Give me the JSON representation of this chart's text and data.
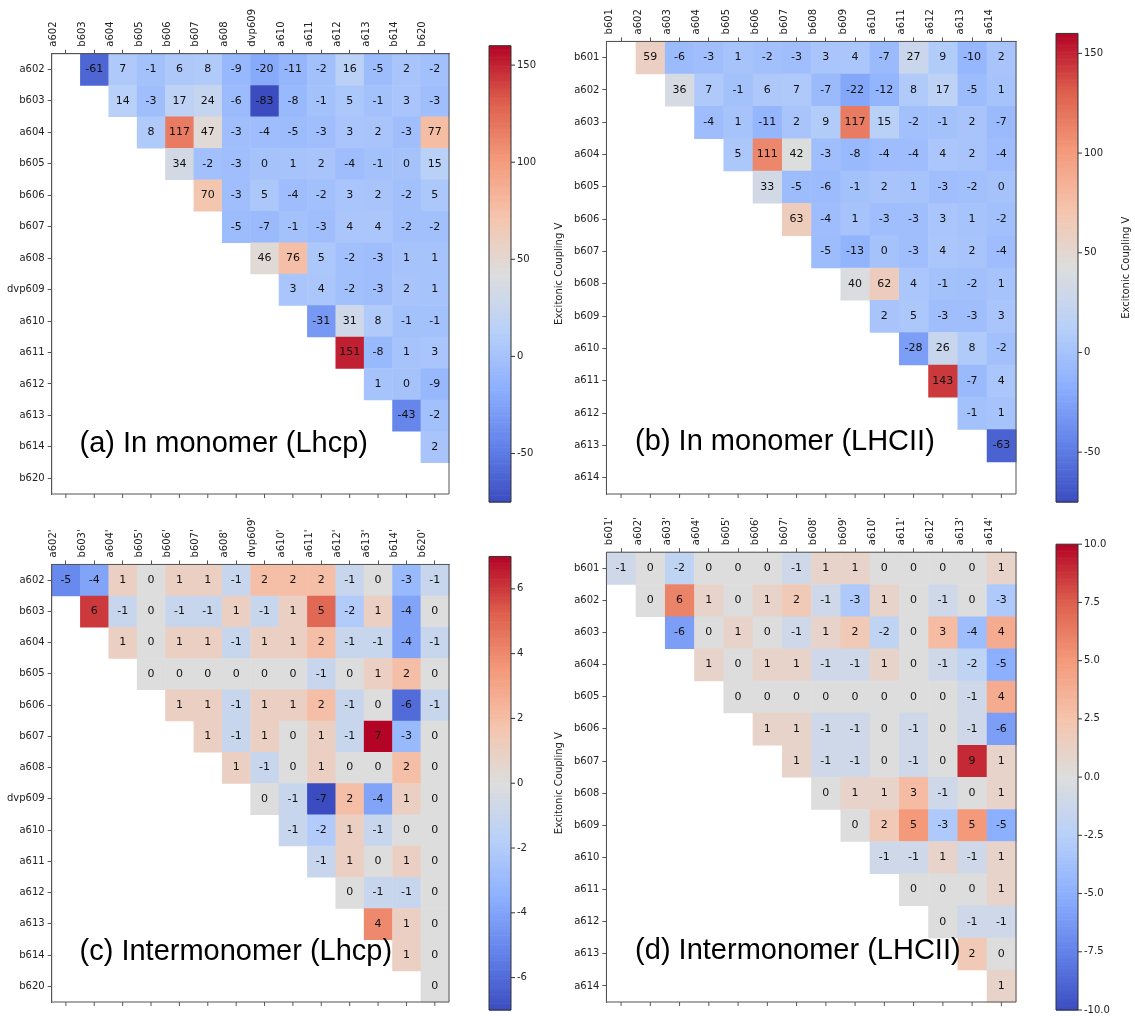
{
  "chart_data": [
    {
      "type": "heatmap",
      "title": "(a) In monomer (Lhcp)",
      "clabel": "Excitonic Coupling V",
      "data_labels": true,
      "categories": [
        "a602",
        "b603",
        "a604",
        "b605",
        "b606",
        "b607",
        "a608",
        "dvp609",
        "a610",
        "a611",
        "a612",
        "a613",
        "b614",
        "b620"
      ],
      "y_categories": [
        "a602",
        "b603",
        "a604",
        "b605",
        "b606",
        "b607",
        "a608",
        "dvp609",
        "a610",
        "a611",
        "a612",
        "a613",
        "b614",
        "b620"
      ],
      "clim": [
        -75,
        160
      ],
      "cticks": [
        -50,
        0,
        50,
        100,
        150
      ],
      "cells": [
        [
          null,
          -61,
          7,
          -1,
          6,
          8,
          -9,
          -20,
          -11,
          -2,
          16,
          -5,
          2,
          -2
        ],
        [
          null,
          null,
          14,
          -3,
          17,
          24,
          -6,
          -83,
          -8,
          -1,
          5,
          -1,
          3,
          -3
        ],
        [
          null,
          null,
          null,
          8,
          117,
          47,
          -3,
          -4,
          -5,
          -3,
          3,
          2,
          -3,
          77
        ],
        [
          null,
          null,
          null,
          null,
          34,
          -2,
          -3,
          0,
          1,
          2,
          -4,
          -1,
          0,
          15
        ],
        [
          null,
          null,
          null,
          null,
          null,
          70,
          -3,
          5,
          -4,
          -2,
          3,
          2,
          -2,
          5
        ],
        [
          null,
          null,
          null,
          null,
          null,
          null,
          -5,
          -7,
          -1,
          -3,
          4,
          4,
          -2,
          -2
        ],
        [
          null,
          null,
          null,
          null,
          null,
          null,
          null,
          46,
          76,
          5,
          -2,
          -3,
          1,
          1
        ],
        [
          null,
          null,
          null,
          null,
          null,
          null,
          null,
          null,
          3,
          4,
          -2,
          -3,
          2,
          1
        ],
        [
          null,
          null,
          null,
          null,
          null,
          null,
          null,
          null,
          null,
          -31,
          31,
          8,
          -1,
          -1
        ],
        [
          null,
          null,
          null,
          null,
          null,
          null,
          null,
          null,
          null,
          null,
          151,
          -8,
          1,
          3
        ],
        [
          null,
          null,
          null,
          null,
          null,
          null,
          null,
          null,
          null,
          null,
          null,
          1,
          0,
          -9
        ],
        [
          null,
          null,
          null,
          null,
          null,
          null,
          null,
          null,
          null,
          null,
          null,
          null,
          -43,
          -2
        ],
        [
          null,
          null,
          null,
          null,
          null,
          null,
          null,
          null,
          null,
          null,
          null,
          null,
          null,
          2
        ],
        [
          null,
          null,
          null,
          null,
          null,
          null,
          null,
          null,
          null,
          null,
          null,
          null,
          null,
          null
        ]
      ]
    },
    {
      "type": "heatmap",
      "title": "(b) In monomer (LHCII)",
      "clabel": "Excitonic Coupling V",
      "data_labels": true,
      "categories": [
        "b601",
        "a602",
        "a603",
        "a604",
        "b605",
        "b606",
        "b607",
        "b608",
        "b609",
        "a610",
        "a611",
        "a612",
        "a613",
        "a614"
      ],
      "y_categories": [
        "b601",
        "a602",
        "a603",
        "a604",
        "b605",
        "b606",
        "b607",
        "b608",
        "b609",
        "a610",
        "a611",
        "a612",
        "a613",
        "a614"
      ],
      "clim": [
        -75,
        160
      ],
      "cticks": [
        -50,
        0,
        50,
        100,
        150
      ],
      "cells": [
        [
          null,
          59,
          -6,
          -3,
          1,
          -2,
          -3,
          3,
          4,
          -7,
          27,
          9,
          -10,
          2
        ],
        [
          null,
          null,
          36,
          7,
          -1,
          6,
          7,
          -7,
          -22,
          -12,
          8,
          17,
          -5,
          1
        ],
        [
          null,
          null,
          null,
          -4,
          1,
          -11,
          2,
          9,
          117,
          15,
          -2,
          -1,
          2,
          -7
        ],
        [
          null,
          null,
          null,
          null,
          5,
          111,
          42,
          -3,
          -8,
          -4,
          -4,
          4,
          2,
          -4
        ],
        [
          null,
          null,
          null,
          null,
          null,
          33,
          -5,
          -6,
          -1,
          2,
          1,
          -3,
          -2,
          0
        ],
        [
          null,
          null,
          null,
          null,
          null,
          null,
          63,
          -4,
          1,
          -3,
          -3,
          3,
          1,
          -2
        ],
        [
          null,
          null,
          null,
          null,
          null,
          null,
          null,
          -5,
          -13,
          0,
          -3,
          4,
          2,
          -4
        ],
        [
          null,
          null,
          null,
          null,
          null,
          null,
          null,
          null,
          40,
          62,
          4,
          -1,
          -2,
          1
        ],
        [
          null,
          null,
          null,
          null,
          null,
          null,
          null,
          null,
          null,
          2,
          5,
          -3,
          -3,
          3
        ],
        [
          null,
          null,
          null,
          null,
          null,
          null,
          null,
          null,
          null,
          null,
          -28,
          26,
          8,
          -2
        ],
        [
          null,
          null,
          null,
          null,
          null,
          null,
          null,
          null,
          null,
          null,
          null,
          143,
          -7,
          4
        ],
        [
          null,
          null,
          null,
          null,
          null,
          null,
          null,
          null,
          null,
          null,
          null,
          null,
          -1,
          1
        ],
        [
          null,
          null,
          null,
          null,
          null,
          null,
          null,
          null,
          null,
          null,
          null,
          null,
          null,
          -63
        ],
        [
          null,
          null,
          null,
          null,
          null,
          null,
          null,
          null,
          null,
          null,
          null,
          null,
          null,
          null
        ]
      ]
    },
    {
      "type": "heatmap",
      "title": "(c) Intermonomer (Lhcp)",
      "clabel": "Excitonic Coupling V",
      "data_labels": true,
      "categories": [
        "a602'",
        "b603'",
        "a604'",
        "b605'",
        "b606'",
        "b607'",
        "a608'",
        "dvp609'",
        "a610'",
        "a611'",
        "a612'",
        "a613'",
        "b614'",
        "b620'"
      ],
      "y_categories": [
        "a602",
        "b603",
        "a604",
        "b605",
        "b606",
        "b607",
        "a608",
        "dvp609",
        "a610",
        "a611",
        "a612",
        "a613",
        "b614",
        "b620"
      ],
      "clim": [
        -7,
        7
      ],
      "cticks": [
        -6,
        -4,
        -2,
        0,
        2,
        4,
        6
      ],
      "cells": [
        [
          -5,
          -4,
          1,
          0,
          1,
          1,
          -1,
          2,
          2,
          2,
          -1,
          0,
          -3,
          -1
        ],
        [
          null,
          6,
          -1,
          0,
          -1,
          -1,
          1,
          -1,
          1,
          5,
          -2,
          1,
          -4,
          0
        ],
        [
          null,
          null,
          1,
          0,
          1,
          1,
          -1,
          1,
          1,
          2,
          -1,
          -1,
          -4,
          -1
        ],
        [
          null,
          null,
          null,
          0,
          0,
          0,
          0,
          0,
          0,
          -1,
          0,
          1,
          2,
          0
        ],
        [
          null,
          null,
          null,
          null,
          1,
          1,
          -1,
          1,
          1,
          2,
          -1,
          0,
          -6,
          -1
        ],
        [
          null,
          null,
          null,
          null,
          null,
          1,
          -1,
          1,
          0,
          1,
          -1,
          7,
          -3,
          0
        ],
        [
          null,
          null,
          null,
          null,
          null,
          null,
          1,
          -1,
          0,
          1,
          0,
          0,
          2,
          0
        ],
        [
          null,
          null,
          null,
          null,
          null,
          null,
          null,
          0,
          -1,
          -7,
          2,
          -4,
          1,
          0
        ],
        [
          null,
          null,
          null,
          null,
          null,
          null,
          null,
          null,
          -1,
          -2,
          1,
          -1,
          0,
          0
        ],
        [
          null,
          null,
          null,
          null,
          null,
          null,
          null,
          null,
          null,
          -1,
          1,
          0,
          1,
          0
        ],
        [
          null,
          null,
          null,
          null,
          null,
          null,
          null,
          null,
          null,
          null,
          0,
          -1,
          -1,
          0
        ],
        [
          null,
          null,
          null,
          null,
          null,
          null,
          null,
          null,
          null,
          null,
          null,
          4,
          1,
          0
        ],
        [
          null,
          null,
          null,
          null,
          null,
          null,
          null,
          null,
          null,
          null,
          null,
          null,
          1,
          0
        ],
        [
          null,
          null,
          null,
          null,
          null,
          null,
          null,
          null,
          null,
          null,
          null,
          null,
          null,
          0
        ]
      ]
    },
    {
      "type": "heatmap",
      "title": "(d) Intermonomer (LHCII)",
      "data_labels": true,
      "categories": [
        "b601'",
        "a602'",
        "a603'",
        "a604'",
        "b605'",
        "b606'",
        "b607'",
        "b608'",
        "b609'",
        "a610'",
        "a611'",
        "a612'",
        "a613'",
        "a614'"
      ],
      "y_categories": [
        "b601",
        "a602",
        "a603",
        "a604",
        "b605",
        "b606",
        "b607",
        "b608",
        "b609",
        "a610",
        "a611",
        "a612",
        "a613",
        "a614"
      ],
      "clim": [
        -10,
        10
      ],
      "cticks": [
        {
          "value": -10,
          "label": "-10.0"
        },
        -7.5,
        {
          "value": -5,
          "label": "-5.0"
        },
        -2.5,
        {
          "value": 0,
          "label": "0.0"
        },
        2.5,
        {
          "value": 5,
          "label": "5.0"
        },
        7.5,
        {
          "value": 10,
          "label": "10.0"
        }
      ],
      "cells": [
        [
          -1,
          0,
          -2,
          0,
          0,
          0,
          -1,
          1,
          1,
          0,
          0,
          0,
          0,
          1
        ],
        [
          null,
          0,
          6,
          1,
          0,
          1,
          2,
          -1,
          -3,
          1,
          0,
          -1,
          0,
          -3
        ],
        [
          null,
          null,
          -6,
          0,
          1,
          0,
          -1,
          1,
          2,
          -2,
          0,
          3,
          -4,
          4
        ],
        [
          null,
          null,
          null,
          1,
          0,
          1,
          1,
          -1,
          -1,
          1,
          0,
          -1,
          -2,
          -5
        ],
        [
          null,
          null,
          null,
          null,
          0,
          0,
          0,
          0,
          0,
          0,
          0,
          0,
          -1,
          4
        ],
        [
          null,
          null,
          null,
          null,
          null,
          1,
          1,
          -1,
          -1,
          0,
          -1,
          0,
          -1,
          -6
        ],
        [
          null,
          null,
          null,
          null,
          null,
          null,
          1,
          -1,
          -1,
          0,
          -1,
          0,
          9,
          1
        ],
        [
          null,
          null,
          null,
          null,
          null,
          null,
          null,
          0,
          1,
          1,
          3,
          -1,
          0,
          1
        ],
        [
          null,
          null,
          null,
          null,
          null,
          null,
          null,
          null,
          0,
          2,
          5,
          -3,
          5,
          -5
        ],
        [
          null,
          null,
          null,
          null,
          null,
          null,
          null,
          null,
          null,
          -1,
          -1,
          1,
          -1,
          1
        ],
        [
          null,
          null,
          null,
          null,
          null,
          null,
          null,
          null,
          null,
          null,
          0,
          0,
          0,
          1
        ],
        [
          null,
          null,
          null,
          null,
          null,
          null,
          null,
          null,
          null,
          null,
          null,
          0,
          -1,
          -1
        ],
        [
          null,
          null,
          null,
          null,
          null,
          null,
          null,
          null,
          null,
          null,
          null,
          null,
          2,
          0
        ],
        [
          null,
          null,
          null,
          null,
          null,
          null,
          null,
          null,
          null,
          null,
          null,
          null,
          null,
          1
        ]
      ]
    }
  ]
}
